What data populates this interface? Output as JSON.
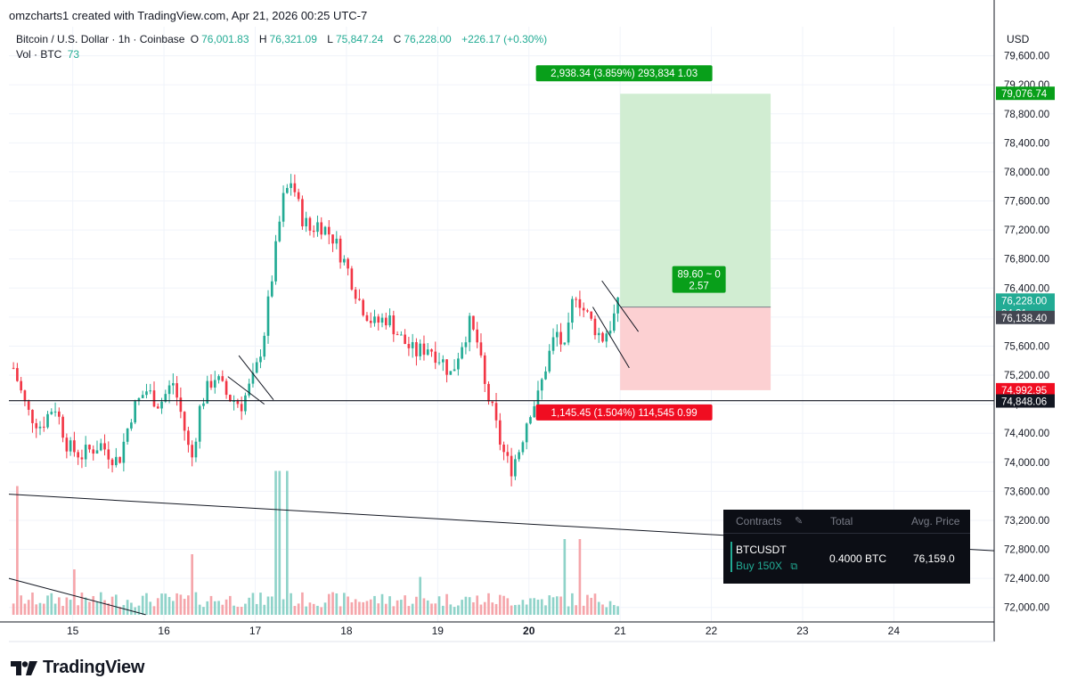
{
  "header": {
    "credit": "omzcharts1 created with TradingView.com, Apr 21, 2026 00:25 UTC-7"
  },
  "legend": {
    "symbol": "Bitcoin / U.S. Dollar · 1h · Coinbase",
    "o_label": "O",
    "o_value": "76,001.83",
    "h_label": "H",
    "h_value": "76,321.09",
    "l_label": "L",
    "l_value": "75,847.24",
    "c_label": "C",
    "c_value": "76,228.00",
    "change": "+226.17 (+0.30%)",
    "vol_label": "Vol · BTC",
    "vol_value": "73"
  },
  "axis": {
    "unit": "USD"
  },
  "chart_data": {
    "type": "candlestick",
    "price_range": [
      71800,
      80000
    ],
    "y_ticks": [
      72000,
      72400,
      72800,
      73200,
      73600,
      74000,
      74400,
      74800,
      75200,
      75600,
      76000,
      76400,
      76800,
      77200,
      77600,
      78000,
      78400,
      78800,
      79200,
      79600
    ],
    "y_tick_labels": [
      "72,000.00",
      "72,400.00",
      "72,800.00",
      "73,200.00",
      "73,600.00",
      "74,000.00",
      "74,400.00",
      "74,800.00",
      "75,200.00",
      "75,600.00",
      "76,000.00",
      "76,400.00",
      "76,800.00",
      "77,200.00",
      "77,600.00",
      "78,000.00",
      "78,400.00",
      "78,800.00",
      "79,200.00",
      "79,600.00"
    ],
    "x_range_days": [
      14.3,
      25.1
    ],
    "x_ticks": [
      15,
      16,
      17,
      18,
      19,
      20,
      21,
      22,
      23,
      24
    ],
    "x_tick_labels": [
      "15",
      "16",
      "17",
      "18",
      "19",
      "20",
      "21",
      "22",
      "23",
      "24"
    ],
    "x_bold_tick": "20",
    "price_path": [
      [
        14.35,
        75300
      ],
      [
        14.5,
        74700
      ],
      [
        14.65,
        74500
      ],
      [
        14.8,
        74800
      ],
      [
        14.95,
        74200
      ],
      [
        15.1,
        74100
      ],
      [
        15.3,
        74250
      ],
      [
        15.5,
        74000
      ],
      [
        15.65,
        74700
      ],
      [
        15.8,
        75000
      ],
      [
        15.95,
        74800
      ],
      [
        16.1,
        75100
      ],
      [
        16.2,
        74600
      ],
      [
        16.3,
        74000
      ],
      [
        16.4,
        74800
      ],
      [
        16.55,
        75200
      ],
      [
        16.7,
        74900
      ],
      [
        16.85,
        74800
      ],
      [
        17.0,
        75200
      ],
      [
        17.1,
        75800
      ],
      [
        17.2,
        76700
      ],
      [
        17.3,
        77600
      ],
      [
        17.4,
        77900
      ],
      [
        17.5,
        77400
      ],
      [
        17.6,
        77200
      ],
      [
        17.7,
        77300
      ],
      [
        17.85,
        77100
      ],
      [
        18.0,
        76700
      ],
      [
        18.15,
        76200
      ],
      [
        18.3,
        75900
      ],
      [
        18.45,
        76000
      ],
      [
        18.6,
        75700
      ],
      [
        18.75,
        75500
      ],
      [
        18.9,
        75600
      ],
      [
        19.05,
        75400
      ],
      [
        19.15,
        75200
      ],
      [
        19.25,
        75600
      ],
      [
        19.35,
        75900
      ],
      [
        19.45,
        75600
      ],
      [
        19.5,
        75100
      ],
      [
        19.6,
        74700
      ],
      [
        19.7,
        74200
      ],
      [
        19.8,
        73900
      ],
      [
        19.9,
        74200
      ],
      [
        20.0,
        74700
      ],
      [
        20.1,
        74900
      ],
      [
        20.2,
        75400
      ],
      [
        20.3,
        75800
      ],
      [
        20.4,
        75500
      ],
      [
        20.5,
        76400
      ],
      [
        20.6,
        76100
      ],
      [
        20.7,
        75900
      ],
      [
        20.8,
        75700
      ],
      [
        20.9,
        75900
      ],
      [
        21.0,
        76228
      ]
    ],
    "current_price": 76228.0,
    "current_price_label": "76,228.00",
    "countdown_label": "34:31",
    "alt_price_label": "76,138.40",
    "crosshair_price_label": "74,848.06",
    "volume_spikes": [
      [
        14.4,
        0.85
      ],
      [
        15.0,
        0.3
      ],
      [
        16.3,
        0.4
      ],
      [
        17.25,
        0.95
      ],
      [
        17.35,
        0.95
      ],
      [
        18.8,
        0.25
      ],
      [
        20.4,
        0.5
      ],
      [
        20.55,
        0.5
      ]
    ],
    "position": {
      "entry": 76138.4,
      "target": 79076.74,
      "stop": 74992.95,
      "x_start_day": 21.0,
      "x_end_day": 22.65,
      "target_label": "79,076.74",
      "stop_label": "74,992.95",
      "target_text": "2,938.34 (3.859%) 293,834 1.03",
      "stop_text": "1,145.45 (1.504%) 114,545 0.99",
      "mid_text_1": "89.60 ~ 0",
      "mid_text_2": "2.57"
    },
    "lines": {
      "horizontal_level": 74848.06,
      "trendline_1": [
        [
          14.3,
          73560
        ],
        [
          25.1,
          72780
        ]
      ],
      "trendline_2": [
        [
          14.3,
          72400
        ],
        [
          15.8,
          71900
        ]
      ],
      "flag_1": [
        [
          16.7,
          75180
        ],
        [
          17.1,
          74800
        ]
      ],
      "flag_2": [
        [
          16.82,
          75470
        ],
        [
          17.2,
          74860
        ]
      ],
      "flag_3": [
        [
          20.7,
          76140
        ],
        [
          21.1,
          75300
        ]
      ],
      "flag_4": [
        [
          20.8,
          76500
        ],
        [
          21.2,
          75800
        ]
      ]
    },
    "grid": true,
    "legend_placement": "top-left"
  },
  "positions_panel": {
    "col_contracts": "Contracts",
    "col_total": "Total",
    "col_avg": "Avg. Price",
    "symbol": "BTCUSDT",
    "side": "Buy 150X",
    "total": "0.4000 BTC",
    "avg_price": "76,159.0"
  },
  "branding": {
    "logo_text": "TradingView"
  },
  "colors": {
    "up": "#22ab94",
    "down": "#f23645",
    "vol_up": "#8fd3c9",
    "vol_down": "#f5a5aa",
    "target_zone": "#d1edd2",
    "stop_zone": "#fcd0d2",
    "target_label": "#089f1a",
    "stop_label": "#f00d21",
    "grid": "#f0f3fa",
    "axis": "#131722"
  }
}
